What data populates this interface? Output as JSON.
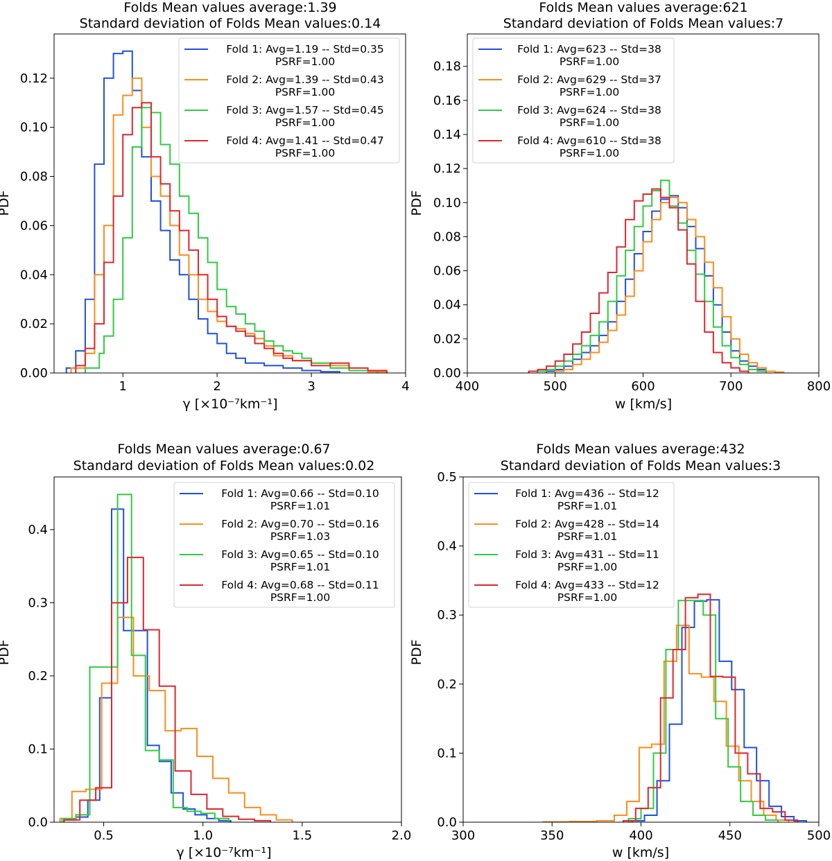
{
  "chart_data": [
    {
      "type": "histogram",
      "title_line1": "Folds Mean values average:1.39",
      "title_line2": "Standard deviation of Folds Mean values:0.14",
      "xlabel": "γ [×10⁻⁷km⁻¹]",
      "ylabel": "PDF",
      "xlim": [
        0.27,
        4.0
      ],
      "ylim": [
        0,
        0.138
      ],
      "xticks": [
        1,
        2,
        3,
        4
      ],
      "xtick_labels": [
        "1",
        "2",
        "3",
        "4"
      ],
      "yticks": [
        0,
        0.02,
        0.04,
        0.06,
        0.08,
        0.1,
        0.12
      ],
      "ytick_labels": [
        "0.00",
        "0.02",
        "0.04",
        "0.06",
        "0.08",
        "0.10",
        "0.12"
      ],
      "legend_position": "top-right",
      "series": [
        {
          "name": "Fold 1",
          "legend_line1": "Fold 1: Avg=1.19 -- Std=0.35",
          "legend_line2": "PSRF=1.00",
          "color": "#1f4fe0",
          "edges": [
            0.4,
            0.5,
            0.6,
            0.7,
            0.8,
            0.9,
            1.0,
            1.1,
            1.2,
            1.3,
            1.4,
            1.5,
            1.6,
            1.7,
            1.8,
            1.9,
            2.0,
            2.1,
            2.2,
            2.3,
            2.5,
            2.7,
            2.9,
            3.1,
            3.3
          ],
          "values": [
            0.002,
            0.009,
            0.03,
            0.085,
            0.12,
            0.13,
            0.131,
            0.115,
            0.088,
            0.07,
            0.058,
            0.046,
            0.04,
            0.03,
            0.022,
            0.016,
            0.012,
            0.008,
            0.006,
            0.004,
            0.003,
            0.002,
            0.001,
            0.0005
          ]
        },
        {
          "name": "Fold 2",
          "legend_line1": "Fold 2: Avg=1.39 -- Std=0.43",
          "legend_line2": "PSRF=1.00",
          "color": "#ff8c1a",
          "edges": [
            0.45,
            0.6,
            0.7,
            0.8,
            0.9,
            1.0,
            1.1,
            1.2,
            1.3,
            1.4,
            1.5,
            1.6,
            1.7,
            1.8,
            1.9,
            2.0,
            2.1,
            2.2,
            2.3,
            2.4,
            2.5,
            2.6,
            2.8,
            3.0,
            3.2,
            3.4,
            3.6,
            3.8
          ],
          "values": [
            0.002,
            0.008,
            0.04,
            0.06,
            0.105,
            0.113,
            0.12,
            0.1,
            0.08,
            0.072,
            0.06,
            0.048,
            0.04,
            0.03,
            0.025,
            0.021,
            0.019,
            0.018,
            0.016,
            0.014,
            0.011,
            0.007,
            0.005,
            0.004,
            0.003,
            0.001,
            0.0005
          ]
        },
        {
          "name": "Fold 3",
          "legend_line1": "Fold 3: Avg=1.57 -- Std=0.45",
          "legend_line2": "PSRF=1.00",
          "color": "#2ecc40",
          "edges": [
            0.6,
            0.75,
            0.8,
            0.9,
            1.0,
            1.1,
            1.2,
            1.3,
            1.4,
            1.5,
            1.6,
            1.7,
            1.8,
            1.9,
            2.0,
            2.1,
            2.2,
            2.3,
            2.4,
            2.5,
            2.6,
            2.7,
            2.8,
            2.9,
            3.0,
            3.2,
            3.4,
            3.7
          ],
          "values": [
            0.002,
            0.008,
            0.015,
            0.03,
            0.055,
            0.092,
            0.108,
            0.106,
            0.093,
            0.085,
            0.072,
            0.065,
            0.055,
            0.045,
            0.034,
            0.027,
            0.024,
            0.02,
            0.017,
            0.013,
            0.011,
            0.009,
            0.008,
            0.006,
            0.004,
            0.002,
            0.001
          ]
        },
        {
          "name": "Fold 4",
          "legend_line1": "Fold 4: Avg=1.41 -- Std=0.47",
          "legend_line2": "PSRF=1.00",
          "color": "#e0262e",
          "edges": [
            0.5,
            0.6,
            0.7,
            0.8,
            0.9,
            1.0,
            1.1,
            1.2,
            1.3,
            1.4,
            1.5,
            1.6,
            1.7,
            1.8,
            1.9,
            2.0,
            2.1,
            2.2,
            2.3,
            2.4,
            2.5,
            2.6,
            2.7,
            2.8,
            3.0,
            3.2,
            3.4,
            3.6,
            3.8
          ],
          "values": [
            0.003,
            0.01,
            0.02,
            0.045,
            0.072,
            0.097,
            0.108,
            0.11,
            0.088,
            0.077,
            0.066,
            0.058,
            0.05,
            0.04,
            0.03,
            0.023,
            0.019,
            0.017,
            0.015,
            0.012,
            0.01,
            0.008,
            0.006,
            0.005,
            0.003,
            0.004,
            0.002,
            0.001
          ]
        }
      ]
    },
    {
      "type": "histogram",
      "title_line1": "Folds Mean values average:621",
      "title_line2": "Standard deviation of Folds Mean values:7",
      "xlabel": "w [km/s]",
      "ylabel": "PDF",
      "xlim": [
        400,
        800
      ],
      "ylim": [
        0,
        0.199
      ],
      "xticks": [
        400,
        500,
        600,
        700,
        800
      ],
      "xtick_labels": [
        "400",
        "500",
        "600",
        "700",
        "800"
      ],
      "yticks": [
        0,
        0.02,
        0.04,
        0.06,
        0.08,
        0.1,
        0.12,
        0.14,
        0.16,
        0.18
      ],
      "ytick_labels": [
        "0.00",
        "0.02",
        "0.04",
        "0.06",
        "0.08",
        "0.10",
        "0.12",
        "0.14",
        "0.16",
        "0.18"
      ],
      "legend_position": "top-left",
      "series": [
        {
          "name": "Fold 1",
          "legend_line1": "Fold 1: Avg=623 -- Std=38",
          "legend_line2": "PSRF=1.00",
          "color": "#1f4fe0",
          "edges": [
            490,
            500,
            510,
            520,
            530,
            540,
            550,
            560,
            570,
            580,
            590,
            600,
            610,
            620,
            630,
            640,
            650,
            660,
            670,
            680,
            690,
            700,
            710,
            720,
            730,
            740,
            750
          ],
          "values": [
            0.001,
            0.002,
            0.004,
            0.008,
            0.012,
            0.016,
            0.022,
            0.03,
            0.042,
            0.055,
            0.07,
            0.083,
            0.095,
            0.102,
            0.104,
            0.097,
            0.086,
            0.073,
            0.057,
            0.04,
            0.024,
            0.013,
            0.007,
            0.004,
            0.002,
            0.001
          ]
        },
        {
          "name": "Fold 2",
          "legend_line1": "Fold 2: Avg=629 -- Std=37",
          "legend_line2": "PSRF=1.00",
          "color": "#ff8c1a",
          "edges": [
            500,
            510,
            520,
            530,
            540,
            550,
            560,
            570,
            580,
            590,
            600,
            610,
            620,
            630,
            640,
            650,
            660,
            670,
            680,
            690,
            700,
            710,
            720,
            730,
            740,
            750,
            760
          ],
          "values": [
            0.001,
            0.002,
            0.005,
            0.008,
            0.012,
            0.018,
            0.025,
            0.034,
            0.045,
            0.06,
            0.077,
            0.09,
            0.1,
            0.103,
            0.1,
            0.09,
            0.08,
            0.065,
            0.05,
            0.033,
            0.02,
            0.011,
            0.006,
            0.003,
            0.001,
            0.0005
          ]
        },
        {
          "name": "Fold 3",
          "legend_line1": "Fold 3: Avg=624 -- Std=38",
          "legend_line2": "PSRF=1.00",
          "color": "#2ecc40",
          "edges": [
            480,
            490,
            500,
            510,
            520,
            530,
            540,
            550,
            560,
            570,
            580,
            590,
            600,
            610,
            620,
            630,
            640,
            650,
            660,
            670,
            680,
            690,
            700,
            710,
            720,
            730,
            740
          ],
          "values": [
            0.001,
            0.002,
            0.004,
            0.007,
            0.011,
            0.016,
            0.022,
            0.03,
            0.042,
            0.057,
            0.072,
            0.086,
            0.098,
            0.107,
            0.113,
            0.098,
            0.088,
            0.072,
            0.058,
            0.042,
            0.027,
            0.016,
            0.009,
            0.005,
            0.002,
            0.001
          ]
        },
        {
          "name": "Fold 4",
          "legend_line1": "Fold 4: Avg=610 -- Std=38",
          "legend_line2": "PSRF=1.00",
          "color": "#e0262e",
          "edges": [
            470,
            480,
            490,
            500,
            510,
            520,
            530,
            540,
            550,
            560,
            570,
            580,
            590,
            600,
            610,
            620,
            630,
            640,
            650,
            660,
            670,
            680,
            690,
            700,
            710,
            720
          ],
          "values": [
            0.001,
            0.002,
            0.004,
            0.007,
            0.011,
            0.017,
            0.024,
            0.035,
            0.047,
            0.059,
            0.074,
            0.09,
            0.101,
            0.105,
            0.108,
            0.103,
            0.097,
            0.084,
            0.064,
            0.042,
            0.024,
            0.012,
            0.006,
            0.003,
            0.001
          ]
        }
      ]
    },
    {
      "type": "histogram",
      "title_line1": "Folds Mean values average:0.67",
      "title_line2": "Standard deviation of Folds Mean values:0.02",
      "xlabel": "γ [×10⁻⁷km⁻¹]",
      "ylabel": "PDF",
      "xlim": [
        0.25,
        2.0
      ],
      "ylim": [
        0,
        0.472
      ],
      "xticks": [
        0.5,
        1.0,
        1.5,
        2.0
      ],
      "xtick_labels": [
        "0.5",
        "1.0",
        "1.5",
        "2.0"
      ],
      "yticks": [
        0,
        0.1,
        0.2,
        0.3,
        0.4
      ],
      "ytick_labels": [
        "0.0",
        "0.1",
        "0.2",
        "0.3",
        "0.4"
      ],
      "legend_position": "top-right",
      "series": [
        {
          "name": "Fold 1",
          "legend_line1": "Fold 1: Avg=0.66 -- Std=0.10",
          "legend_line2": "PSRF=1.01",
          "color": "#1f4fe0",
          "edges": [
            0.3,
            0.36,
            0.42,
            0.48,
            0.54,
            0.6,
            0.66,
            0.72,
            0.78,
            0.84,
            0.9,
            0.96,
            1.02,
            1.08,
            1.14
          ],
          "values": [
            0.003,
            0.007,
            0.03,
            0.17,
            0.428,
            0.262,
            0.262,
            0.105,
            0.083,
            0.04,
            0.018,
            0.01,
            0.005,
            0.002
          ]
        },
        {
          "name": "Fold 2",
          "legend_line1": "Fold 2: Avg=0.70 -- Std=0.16",
          "legend_line2": "PSRF=1.03",
          "color": "#ff8c1a",
          "edges": [
            0.28,
            0.34,
            0.41,
            0.49,
            0.57,
            0.65,
            0.73,
            0.81,
            0.89,
            0.97,
            1.05,
            1.13,
            1.21,
            1.29,
            1.37,
            1.45
          ],
          "values": [
            0.005,
            0.042,
            0.045,
            0.19,
            0.28,
            0.2,
            0.18,
            0.125,
            0.128,
            0.09,
            0.06,
            0.04,
            0.02,
            0.01,
            0.003
          ]
        },
        {
          "name": "Fold 3",
          "legend_line1": "Fold 3: Avg=0.65 -- Std=0.10",
          "legend_line2": "PSRF=1.01",
          "color": "#2ecc40",
          "edges": [
            0.29,
            0.36,
            0.43,
            0.5,
            0.57,
            0.64,
            0.71,
            0.78,
            0.85,
            0.92,
            0.99,
            1.06,
            1.13
          ],
          "values": [
            0.005,
            0.01,
            0.212,
            0.212,
            0.448,
            0.228,
            0.098,
            0.085,
            0.02,
            0.015,
            0.012,
            0.005
          ]
        },
        {
          "name": "Fold 4",
          "legend_line1": "Fold 4: Avg=0.68 -- Std=0.11",
          "legend_line2": "PSRF=1.00",
          "color": "#e0262e",
          "edges": [
            0.3,
            0.38,
            0.46,
            0.54,
            0.62,
            0.7,
            0.78,
            0.86,
            0.94,
            1.02,
            1.1,
            1.18,
            1.26,
            1.34
          ],
          "values": [
            0.003,
            0.03,
            0.047,
            0.3,
            0.362,
            0.263,
            0.186,
            0.07,
            0.038,
            0.018,
            0.008,
            0.004,
            0.002
          ]
        }
      ]
    },
    {
      "type": "histogram",
      "title_line1": "Folds Mean values average:432",
      "title_line2": "Standard deviation of Folds Mean values:3",
      "xlabel": "w [km/s]",
      "ylabel": "PDF",
      "xlim": [
        300,
        500
      ],
      "ylim": [
        0,
        0.5
      ],
      "xticks": [
        300,
        350,
        400,
        450,
        500
      ],
      "xtick_labels": [
        "300",
        "350",
        "400",
        "450",
        "500"
      ],
      "yticks": [
        0,
        0.1,
        0.2,
        0.3,
        0.4,
        0.5
      ],
      "ytick_labels": [
        "0.0",
        "0.1",
        "0.2",
        "0.3",
        "0.4",
        "0.5"
      ],
      "legend_position": "top-left",
      "series": [
        {
          "name": "Fold 1",
          "legend_line1": "Fold 1: Avg=436 -- Std=12",
          "legend_line2": "PSRF=1.01",
          "color": "#1f4fe0",
          "edges": [
            395,
            402,
            409,
            416,
            423,
            430,
            437,
            444,
            451,
            458,
            465,
            472,
            479,
            486,
            493
          ],
          "values": [
            0.002,
            0.01,
            0.06,
            0.142,
            0.282,
            0.32,
            0.322,
            0.233,
            0.192,
            0.108,
            0.06,
            0.023,
            0.008,
            0.002
          ]
        },
        {
          "name": "Fold 2",
          "legend_line1": "Fold 2: Avg=428 -- Std=14",
          "legend_line2": "PSRF=1.01",
          "color": "#ff8c1a",
          "edges": [
            345,
            360,
            375,
            385,
            392,
            399,
            406,
            413,
            420,
            427,
            434,
            441,
            448,
            455,
            462,
            469,
            476,
            483
          ],
          "values": [
            0.0005,
            0.001,
            0.002,
            0.01,
            0.03,
            0.108,
            0.113,
            0.233,
            0.285,
            0.215,
            0.21,
            0.175,
            0.11,
            0.06,
            0.03,
            0.01,
            0.003
          ]
        },
        {
          "name": "Fold 3",
          "legend_line1": "Fold 3: Avg=431 -- Std=11",
          "legend_line2": "PSRF=1.00",
          "color": "#2ecc40",
          "edges": [
            393,
            400,
            407,
            414,
            421,
            428,
            435,
            442,
            449,
            456,
            463,
            470,
            477
          ],
          "values": [
            0.005,
            0.02,
            0.1,
            0.25,
            0.321,
            0.321,
            0.3,
            0.15,
            0.08,
            0.03,
            0.01,
            0.003
          ]
        },
        {
          "name": "Fold 4",
          "legend_line1": "Fold 4: Avg=433 -- Std=12",
          "legend_line2": "PSRF=1.00",
          "color": "#e0262e",
          "edges": [
            390,
            397,
            404,
            411,
            418,
            425,
            432,
            439,
            446,
            453,
            460,
            467,
            474,
            481,
            488
          ],
          "values": [
            0.002,
            0.02,
            0.05,
            0.18,
            0.25,
            0.325,
            0.33,
            0.211,
            0.21,
            0.1,
            0.07,
            0.02,
            0.015,
            0.003
          ]
        }
      ]
    }
  ]
}
